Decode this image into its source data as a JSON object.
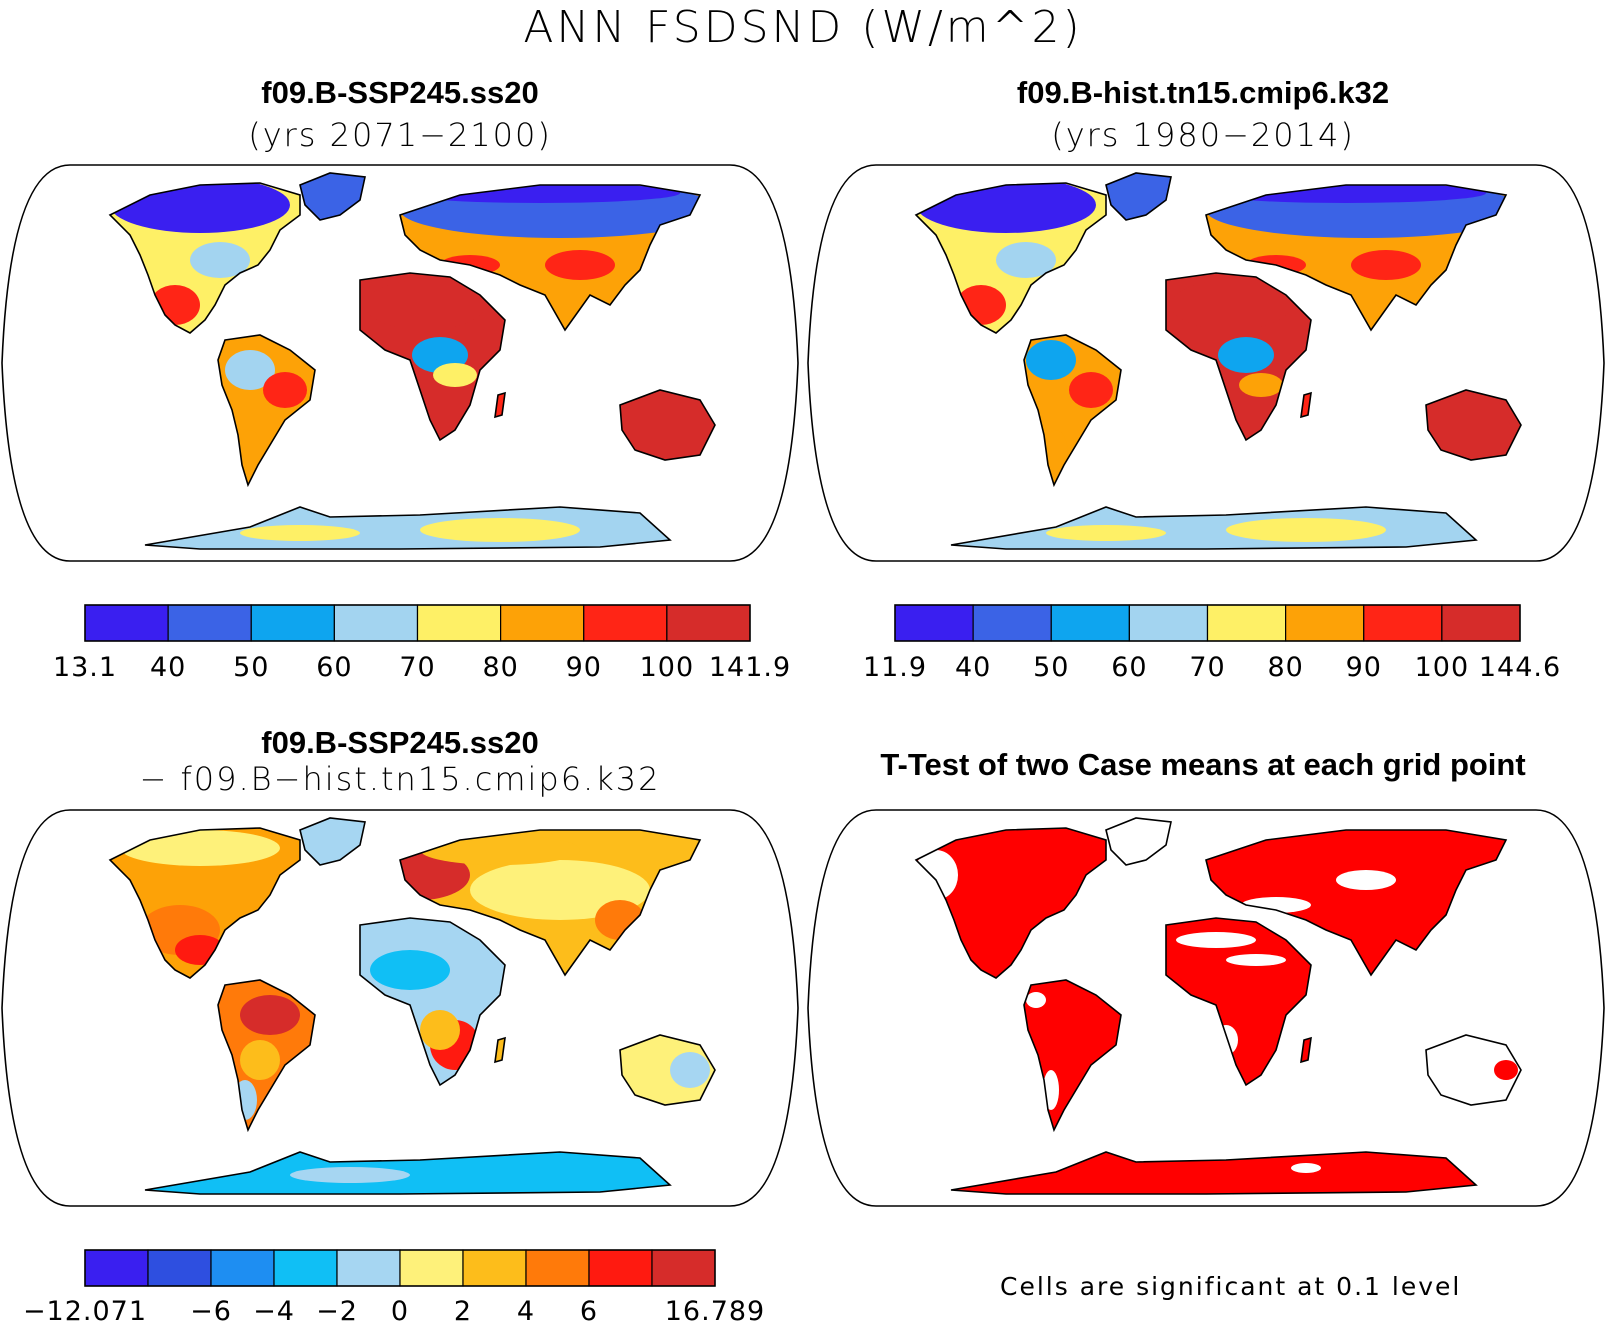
{
  "figure": {
    "title": "ANN FSDSND (W/m^2)"
  },
  "panels": [
    {
      "id": "case1",
      "title": "f09.B-SSP245.ss20",
      "subtitle": "(yrs 2071−2100)",
      "colorbar": {
        "colors": [
          "#3a1ff0",
          "#3b63e6",
          "#0ea5ef",
          "#a3d4f0",
          "#fef066",
          "#fda207",
          "#ff2516",
          "#d62c2a"
        ],
        "labels": [
          "13.1",
          "40",
          "50",
          "60",
          "70",
          "80",
          "90",
          "100",
          "141.9"
        ]
      }
    },
    {
      "id": "case2",
      "title": "f09.B-hist.tn15.cmip6.k32",
      "subtitle": "(yrs 1980−2014)",
      "colorbar": {
        "colors": [
          "#3a1ff0",
          "#3b63e6",
          "#0ea5ef",
          "#a3d4f0",
          "#fef066",
          "#fda207",
          "#ff2516",
          "#d62c2a"
        ],
        "labels": [
          "11.9",
          "40",
          "50",
          "60",
          "70",
          "80",
          "90",
          "100",
          "144.6"
        ]
      }
    },
    {
      "id": "diff",
      "title": "f09.B-SSP245.ss20",
      "subtitle": "− f09.B−hist.tn15.cmip6.k32",
      "colorbar": {
        "colors": [
          "#3a1ff0",
          "#2e4fe0",
          "#1e8ef2",
          "#10bff5",
          "#a6d6f2",
          "#fef17a",
          "#fdbd1b",
          "#ff7a0a",
          "#ff1a10",
          "#d62c2a"
        ],
        "labels": [
          "−12.071",
          "",
          "−6",
          "−4",
          "−2",
          "0",
          "2",
          "4",
          "6",
          "",
          "16.789"
        ]
      }
    },
    {
      "id": "ttest",
      "title": "T-Test of two Case means at each grid point",
      "subtitle": "",
      "note": "Cells are significant at 0.1 level"
    }
  ],
  "map_style": {
    "ocean": "#ffffff",
    "antarctica_case": "#a3d4f0",
    "antarctica_diff": "#10bff5",
    "signif": "#ff0000",
    "coast": "#000000"
  }
}
